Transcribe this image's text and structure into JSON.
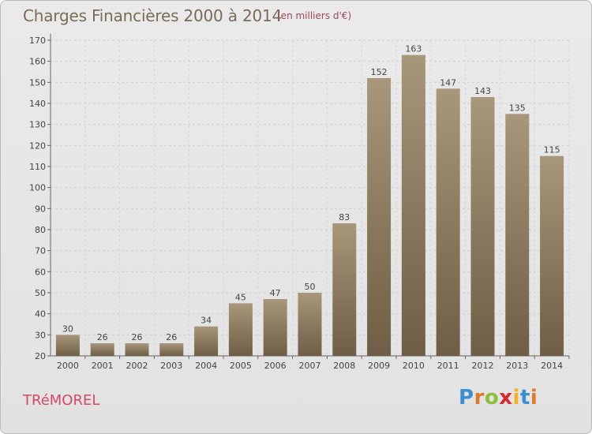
{
  "header": {
    "title": "Charges Financières 2000 à 2014",
    "subtitle": "(en milliers d'€)"
  },
  "footer": {
    "commune": "TRéMOREL",
    "brand": "Proxiti"
  },
  "colors": {
    "bar_top": "#a8977a",
    "bar_bottom": "#6f5d45",
    "grid": "#cccccc",
    "title": "#7a6b57",
    "commune": "#d24a63"
  },
  "chart_data": {
    "type": "bar",
    "title": "Charges Financières 2000 à 2014",
    "subtitle": "(en milliers d'€)",
    "xlabel": "",
    "ylabel": "",
    "categories": [
      "2000",
      "2001",
      "2002",
      "2003",
      "2004",
      "2005",
      "2006",
      "2007",
      "2008",
      "2009",
      "2010",
      "2011",
      "2012",
      "2013",
      "2014"
    ],
    "values": [
      30,
      26,
      26,
      26,
      34,
      45,
      47,
      50,
      83,
      152,
      163,
      147,
      143,
      135,
      115
    ],
    "ylim": [
      20,
      170
    ],
    "yticks": [
      20,
      30,
      40,
      50,
      60,
      70,
      80,
      90,
      100,
      110,
      120,
      130,
      140,
      150,
      160,
      170
    ],
    "grid": true,
    "legend": "none"
  }
}
